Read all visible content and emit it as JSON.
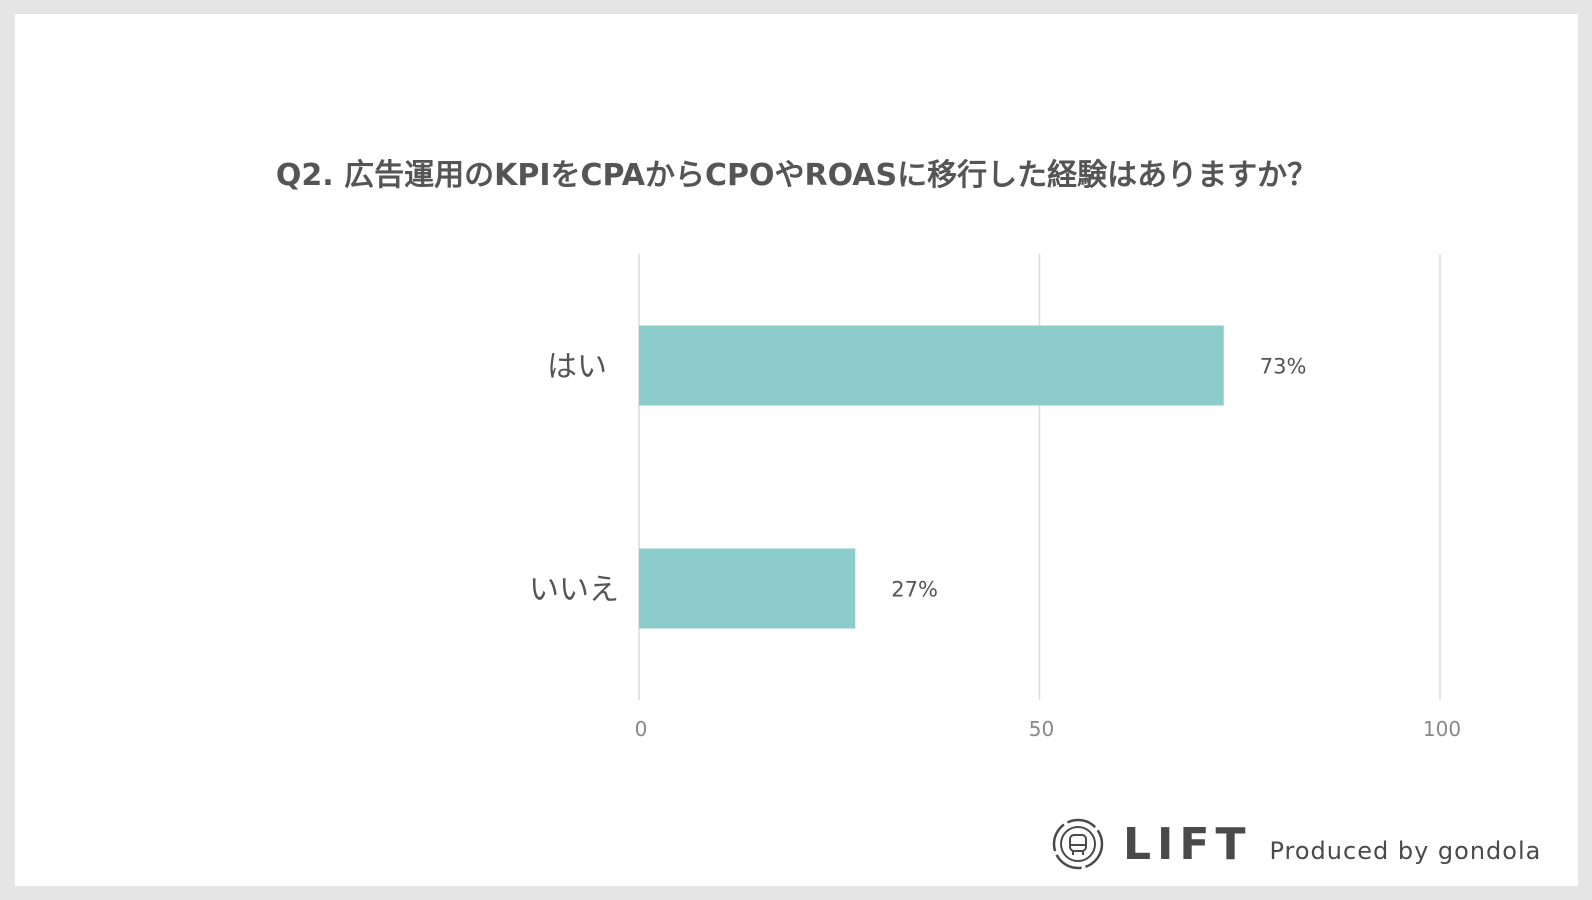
{
  "chart_data": {
    "type": "bar",
    "orientation": "horizontal",
    "title": "Q2. 広告運用のKPIをCPAからCPOやROASに移行した経験はありますか？",
    "categories": [
      "はい",
      "いいえ"
    ],
    "values": [
      73,
      27
    ],
    "data_labels": [
      "73%",
      "27%"
    ],
    "xlim": [
      0,
      100
    ],
    "x_ticks": [
      "0",
      "50",
      "100"
    ],
    "grid": true,
    "bar_color": "#8ccdcc"
  },
  "footer": {
    "logo_text": "LIFT",
    "produced_by": "Produced by gondola"
  },
  "colors": {
    "background": "#e5e5e5",
    "card": "#ffffff",
    "text": "#555555",
    "grid": "#dcdcdc"
  }
}
